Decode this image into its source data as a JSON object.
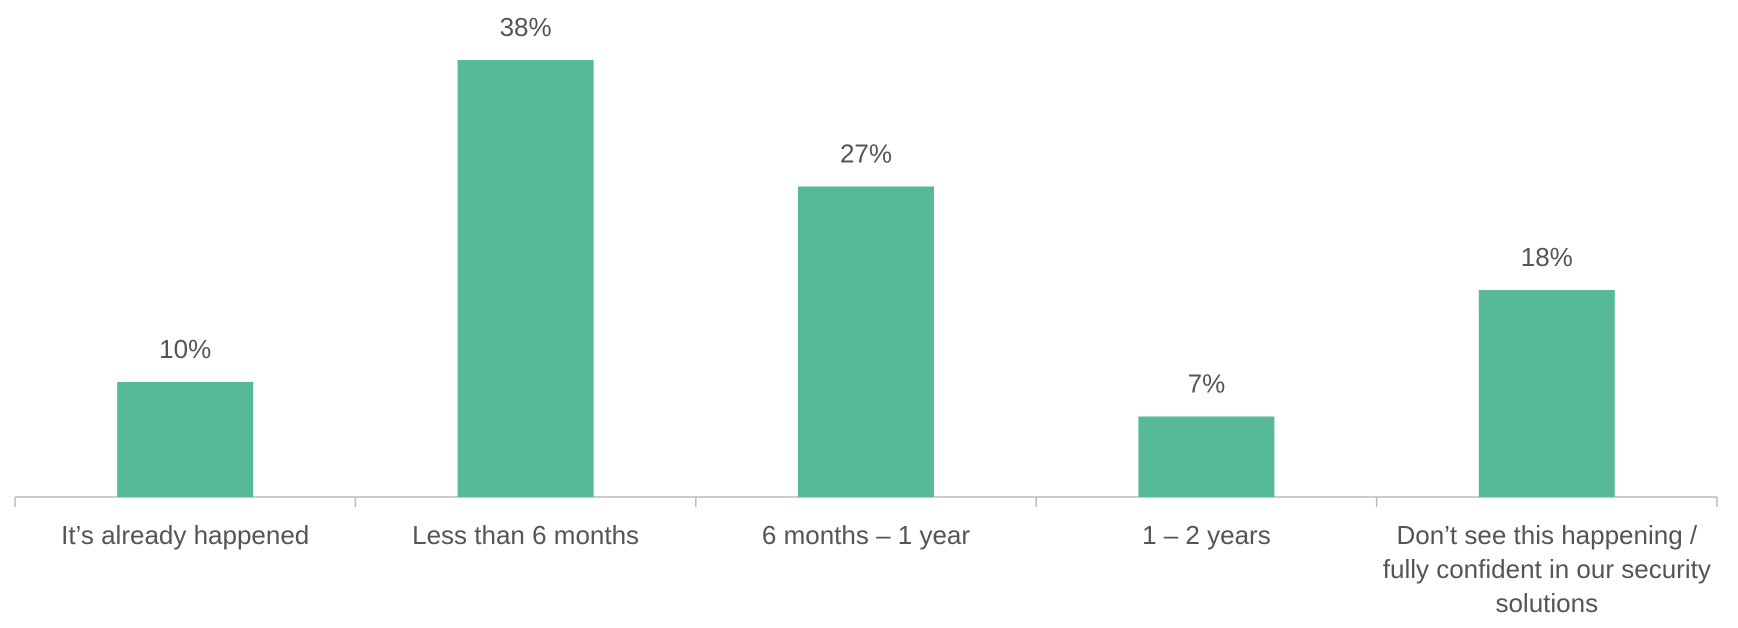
{
  "chart_data": {
    "type": "bar",
    "categories": [
      "It’s already happened",
      "Less than 6 months",
      "6 months – 1 year",
      "1 – 2 years",
      "Don’t see this happening / fully confident in our security solutions"
    ],
    "values": [
      10,
      38,
      27,
      7,
      18
    ],
    "value_labels": [
      "10%",
      "38%",
      "27%",
      "7%",
      "18%"
    ],
    "color": "#55b99a"
  }
}
